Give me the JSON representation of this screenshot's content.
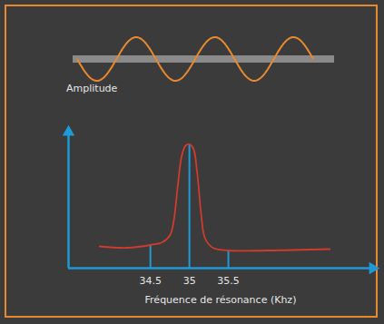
{
  "chart_data": {
    "type": "line",
    "xlabel": "Fréquence de résonance (Khz)",
    "ylabel": "Amplitude",
    "x": [
      33.85,
      34.2,
      34.5,
      34.65,
      34.75,
      34.8,
      34.85,
      34.9,
      34.95,
      35.0,
      35.05,
      35.1,
      35.15,
      35.2,
      35.3,
      35.5,
      36.0,
      36.8
    ],
    "values": [
      1.6,
      1.5,
      1.7,
      1.9,
      2.4,
      3.5,
      6.0,
      8.2,
      9.0,
      9.1,
      8.8,
      7.0,
      4.0,
      2.2,
      1.5,
      1.3,
      1.3,
      1.4
    ],
    "color": "#cf3b2c",
    "xlim": [
      33.45,
      37.35
    ],
    "ylim": [
      0,
      10
    ],
    "xticks": [
      34.5,
      35,
      35.5
    ],
    "tick_labels": "x",
    "grid": false
  }
}
